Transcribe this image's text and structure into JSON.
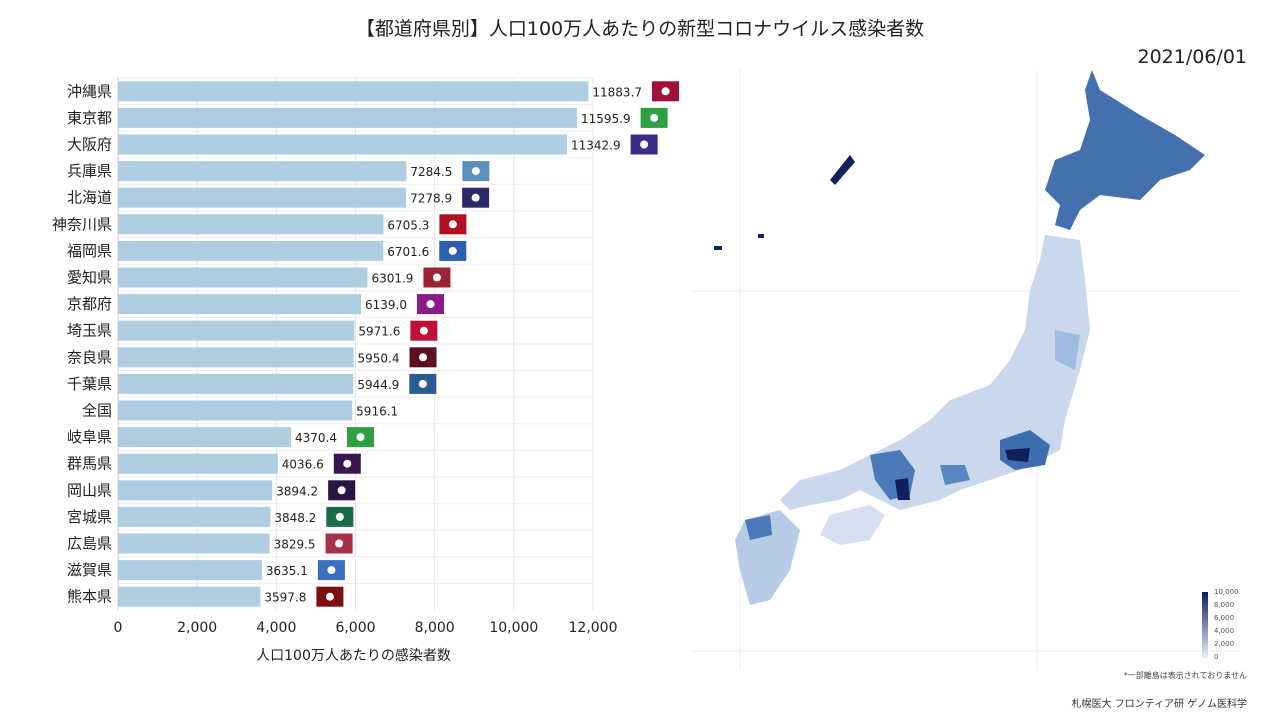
{
  "title": "【都道府県別】人口100万人あたりの新型コロナウイルス感染者数",
  "date": "2021/06/01",
  "note": "*一部離島は表示されておりません",
  "credit": "札幌医大 フロンティア研 ゲノム医科学",
  "chart_data": {
    "type": "bar",
    "orientation": "horizontal",
    "xlabel": "人口100万人あたりの感染者数",
    "xlim": [
      0,
      12000
    ],
    "xticks": [
      "0",
      "2,000",
      "4,000",
      "6,000",
      "8,000",
      "10,000",
      "12,000"
    ],
    "grid": true,
    "bar_color": "#aecde1",
    "categories": [
      "沖縄県",
      "東京都",
      "大阪府",
      "兵庫県",
      "北海道",
      "神奈川県",
      "福岡県",
      "愛知県",
      "京都府",
      "埼玉県",
      "奈良県",
      "千葉県",
      "全国",
      "岐阜県",
      "群馬県",
      "岡山県",
      "宮城県",
      "広島県",
      "滋賀県",
      "熊本県"
    ],
    "values": [
      11883.7,
      11595.9,
      11342.9,
      7284.5,
      7278.9,
      6705.3,
      6701.6,
      6301.9,
      6139.0,
      5971.6,
      5950.4,
      5944.9,
      5916.1,
      4370.4,
      4036.6,
      3894.2,
      3848.2,
      3829.5,
      3635.1,
      3597.8
    ],
    "labels": [
      "11883.7",
      "11595.9",
      "11342.9",
      "7284.5",
      "7278.9",
      "6705.3",
      "6701.6",
      "6301.9",
      "6139.0",
      "5971.6",
      "5950.4",
      "5944.9",
      "5916.1",
      "4370.4",
      "4036.6",
      "3894.2",
      "3848.2",
      "3829.5",
      "3635.1",
      "3597.8"
    ],
    "flag_colors": [
      "#a0103a",
      "#2ea043",
      "#3b2c8c",
      "#5b8fc0",
      "#2e2a6a",
      "#b01020",
      "#2f5fae",
      "#9b2335",
      "#8b1a8b",
      "#c0103a",
      "#5a1020",
      "#2a5c8f",
      null,
      "#2ea043",
      "#3a1650",
      "#2a1440",
      "#1a6b4a",
      "#a83048",
      "#3a6fc0",
      "#7a1010"
    ],
    "map_legend": {
      "ticks": [
        "10,000",
        "8,000",
        "6,000",
        "4,000",
        "2,000",
        "0"
      ],
      "color_low": "#e8eef8",
      "color_high": "#0d1d5c"
    }
  }
}
